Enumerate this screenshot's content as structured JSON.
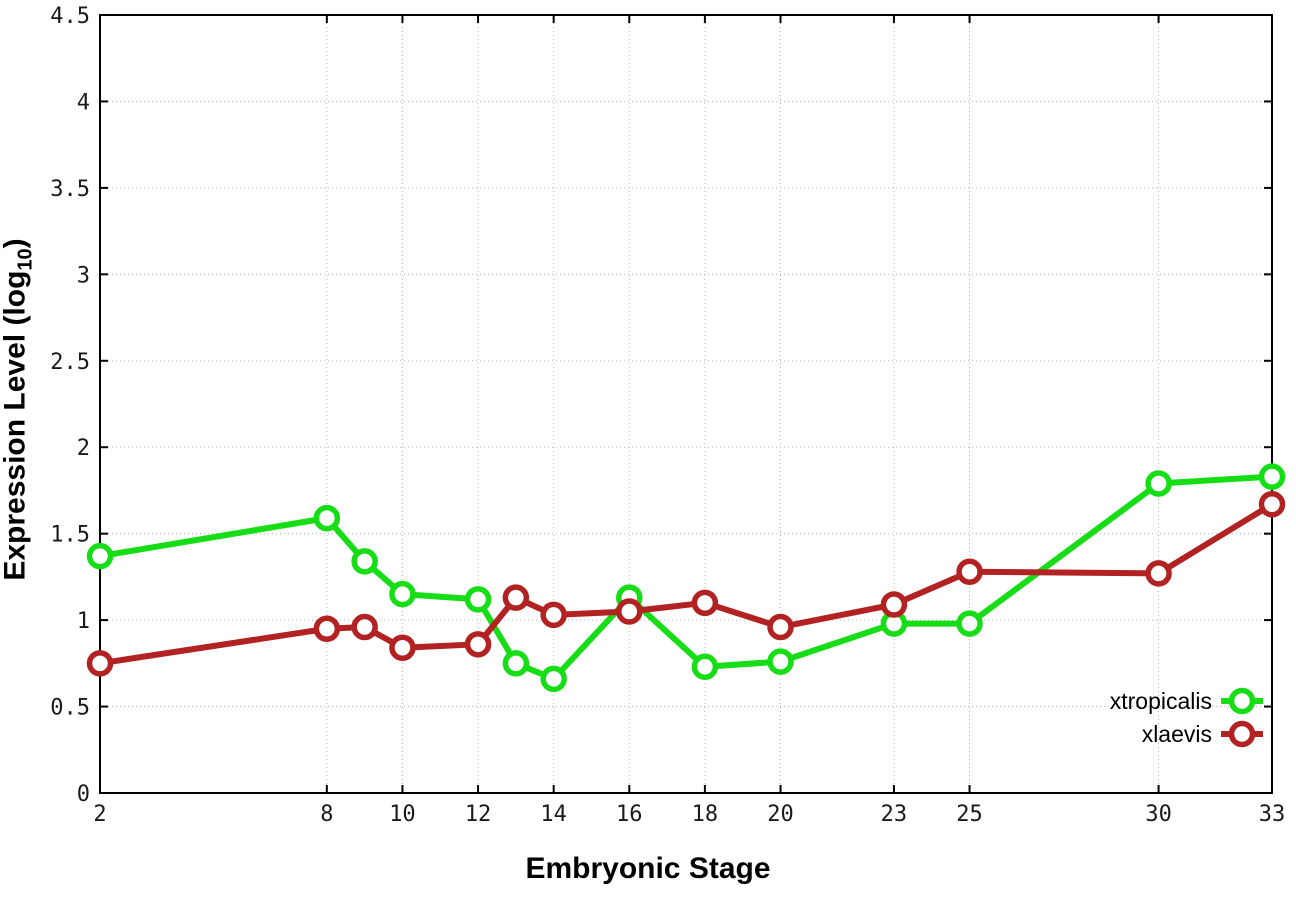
{
  "figure": {
    "background": "#ffffff",
    "border_color": "#000000",
    "grid_color": "#b8b8b8",
    "tick_color": "#000000"
  },
  "chart_data": {
    "type": "line",
    "title": "",
    "xlabel": "Embryonic Stage",
    "ylabel": "Expression Level (log10)",
    "ylabel_parts": {
      "prefix": "Expression Level (log",
      "sub": "10",
      "suffix": ")"
    },
    "x": [
      2,
      8,
      9,
      10,
      12,
      13,
      14,
      16,
      18,
      20,
      23,
      25,
      30,
      33
    ],
    "series": [
      {
        "name": "xtropicalis",
        "color": "#16dd16",
        "values": [
          1.37,
          1.59,
          1.34,
          1.15,
          1.12,
          0.75,
          0.66,
          1.13,
          0.73,
          0.76,
          0.98,
          0.98,
          1.79,
          1.83
        ]
      },
      {
        "name": "xlaevis",
        "color": "#b22222",
        "values": [
          0.75,
          0.95,
          0.96,
          0.84,
          0.86,
          1.13,
          1.03,
          1.05,
          1.1,
          0.96,
          1.09,
          1.28,
          1.27,
          1.67
        ]
      }
    ],
    "xtick_values": [
      2,
      8,
      10,
      12,
      14,
      16,
      18,
      20,
      23,
      25,
      30,
      33
    ],
    "xtick_labels": [
      "2",
      "8",
      "10",
      "12",
      "14",
      "16",
      "18",
      "20",
      "23",
      "25",
      "30",
      "33"
    ],
    "ytick_values": [
      0,
      0.5,
      1,
      1.5,
      2,
      2.5,
      3,
      3.5,
      4,
      4.5
    ],
    "ytick_labels": [
      "0",
      "0.5",
      "1",
      "1.5",
      "2",
      "2.5",
      "3",
      "3.5",
      "4",
      "4.5"
    ],
    "xlim": [
      2,
      33
    ],
    "ylim": [
      0,
      4.5
    ],
    "grid": true,
    "legend_position": "bottom-right",
    "marker": "open-circle"
  }
}
